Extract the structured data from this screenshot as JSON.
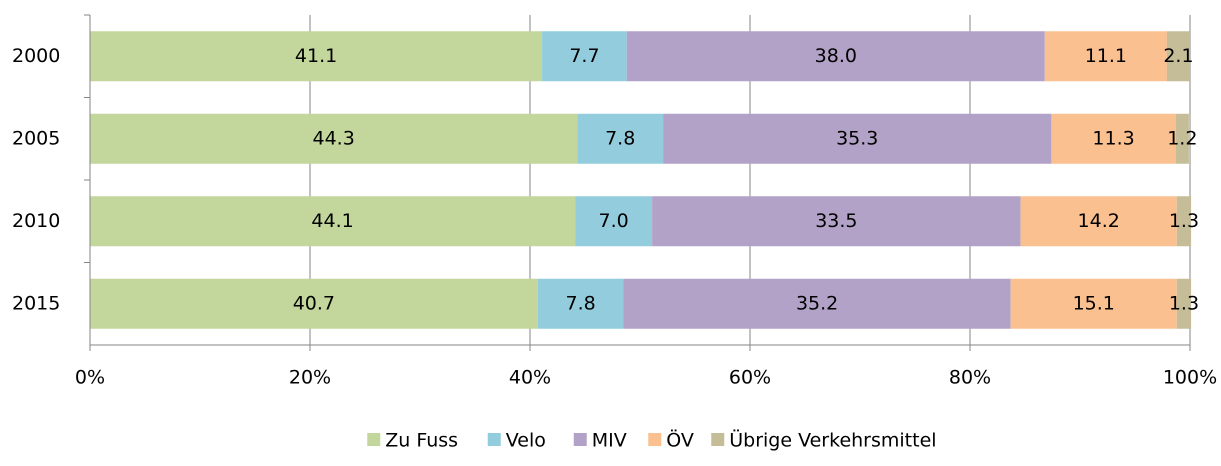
{
  "chart_data": {
    "type": "stacked_barh",
    "categories": [
      "2000",
      "2005",
      "2010",
      "2015"
    ],
    "series": [
      {
        "name": "Zu Fuss",
        "color": "#c3d69b",
        "values": [
          41.1,
          44.3,
          44.1,
          40.7
        ],
        "value_labels": [
          "41.1",
          "44.3",
          "44.1",
          "40.7"
        ]
      },
      {
        "name": "Velo",
        "color": "#93cddd",
        "values": [
          7.7,
          7.8,
          7.0,
          7.8
        ],
        "value_labels": [
          "7.7",
          "7.8",
          "7.0",
          "7.8"
        ]
      },
      {
        "name": "MIV",
        "color": "#b3a2c7",
        "values": [
          38.0,
          35.3,
          33.5,
          35.2
        ],
        "value_labels": [
          "38.0",
          "35.3",
          "33.5",
          "35.2"
        ]
      },
      {
        "name": "ÖV",
        "color": "#fac090",
        "values": [
          11.1,
          11.3,
          14.2,
          15.1
        ],
        "value_labels": [
          "11.1",
          "11.3",
          "14.2",
          "15.1"
        ]
      },
      {
        "name": "Übrige Verkehrsmittel",
        "color": "#c4bd97",
        "values": [
          2.1,
          1.2,
          1.3,
          1.3
        ],
        "value_labels": [
          "2.1",
          "1.2",
          "1.3",
          "1.3"
        ]
      }
    ],
    "xlim": [
      0,
      100
    ],
    "xticks": [
      {
        "value": 0,
        "label": "0%"
      },
      {
        "value": 20,
        "label": "20%"
      },
      {
        "value": 40,
        "label": "40%"
      },
      {
        "value": 60,
        "label": "60%"
      },
      {
        "value": 80,
        "label": "80%"
      },
      {
        "value": 100,
        "label": "100%"
      }
    ],
    "grid": true,
    "legend": "bottom"
  }
}
